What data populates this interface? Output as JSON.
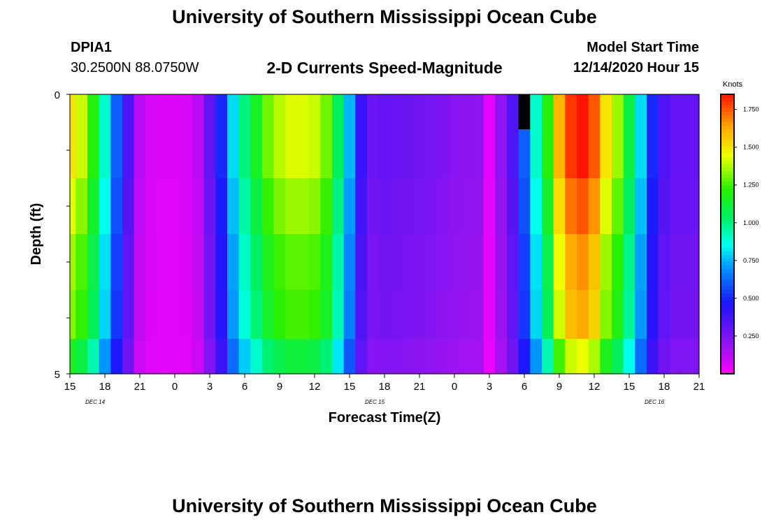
{
  "header": {
    "title": "University of Southern Mississippi Ocean Cube",
    "station": "DPIA1",
    "coordinates": "30.2500N 88.0750W",
    "plot_title": "2-D Currents Speed-Magnitude",
    "model_start_label": "Model Start Time",
    "model_start_value": "12/14/2020 Hour 15",
    "footer_title": "University of Southern Mississippi Ocean Cube"
  },
  "chart_data": {
    "type": "heatmap",
    "title": "2-D Currents Speed-Magnitude",
    "xlabel": "Forecast Time(Z)",
    "ylabel": "Depth (ft)",
    "x_tick_labels": [
      "15",
      "18",
      "21",
      "0",
      "3",
      "6",
      "9",
      "12",
      "15",
      "18",
      "21",
      "0",
      "3",
      "6",
      "9",
      "12",
      "15",
      "18",
      "21"
    ],
    "date_labels": [
      "DEC 14",
      "DEC 15",
      "DEC 16"
    ],
    "y_tick_labels": [
      "0",
      "5"
    ],
    "ylim": [
      0,
      5
    ],
    "x_hours_from_start": [
      0,
      54
    ],
    "colorbar": {
      "label": "Knots",
      "ticks": [
        "0.250",
        "0.500",
        "0.750",
        "1.000",
        "1.250",
        "1.500",
        "1.750"
      ],
      "range": [
        0.0,
        1.85
      ]
    },
    "depth_rows": [
      0.25,
      1.0,
      2.0,
      3.0,
      4.0,
      4.75
    ],
    "surface_speed_knots": [
      1.5,
      1.4,
      1.2,
      0.9,
      0.6,
      0.35,
      0.12,
      0.07,
      0.06,
      0.06,
      0.07,
      0.12,
      0.3,
      0.5,
      0.8,
      1.0,
      1.15,
      1.3,
      1.38,
      1.42,
      1.42,
      1.4,
      1.3,
      1.05,
      0.75,
      0.4,
      0.28,
      0.3,
      0.29,
      0.28,
      0.27,
      0.26,
      0.24,
      0.22,
      0.21,
      0.2,
      0.05,
      0.2,
      0.35,
      0.6,
      0.9,
      1.2,
      1.6,
      1.8,
      1.85,
      1.75,
      1.5,
      1.35,
      1.1,
      0.8,
      0.5,
      0.35,
      0.3,
      0.3,
      0.3
    ],
    "depth_scale": [
      1.0,
      1.0,
      0.95,
      0.9,
      0.88,
      0.78
    ],
    "missing_cell": {
      "hour": 39,
      "depth_row": 0
    }
  }
}
